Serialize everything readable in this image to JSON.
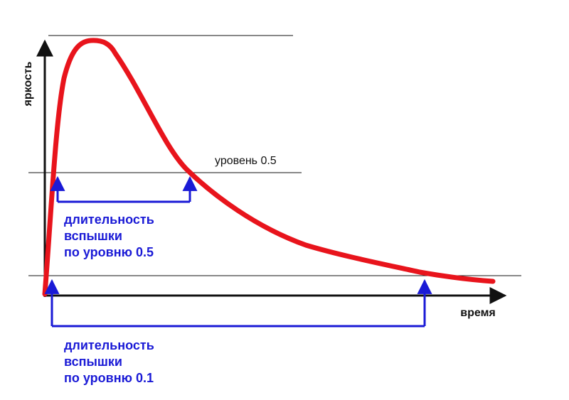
{
  "axes": {
    "y_label": "яркость",
    "x_label": "время"
  },
  "levels": {
    "half_label": "уровень 0.5"
  },
  "annotations": {
    "half": [
      "длительность",
      "вспышки",
      "по уровню 0.5"
    ],
    "tenth": [
      "длительность",
      "вспышки",
      "по уровню 0.1"
    ]
  },
  "colors": {
    "curve": "#e8141c",
    "bracket": "#1a1ad6",
    "axis": "#111111"
  }
}
